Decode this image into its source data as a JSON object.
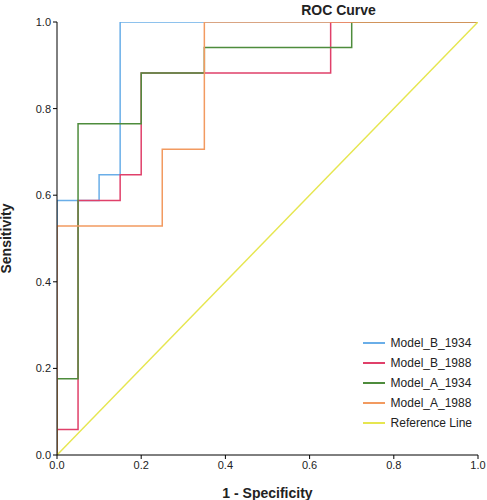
{
  "chart_data": {
    "type": "line",
    "title": "ROC Curve",
    "x_label": "1 - Specificity",
    "y_label": "Sensitivity",
    "xlim": [
      0,
      1
    ],
    "ylim": [
      0,
      1
    ],
    "xticks": [
      {
        "value": 0,
        "label": "0.0"
      },
      {
        "value": 0.2,
        "label": "0.2"
      },
      {
        "value": 0.4,
        "label": "0.4"
      },
      {
        "value": 0.6,
        "label": "0.6"
      },
      {
        "value": 0.8,
        "label": "0.8"
      },
      {
        "value": 1,
        "label": "1.0"
      }
    ],
    "yticks": [
      {
        "value": 0,
        "label": "0.0"
      },
      {
        "value": 0.2,
        "label": "0.2"
      },
      {
        "value": 0.4,
        "label": "0.4"
      },
      {
        "value": 0.6,
        "label": "0.6"
      },
      {
        "value": 0.8,
        "label": "0.8"
      },
      {
        "value": 1,
        "label": "1.0"
      }
    ],
    "grid": false,
    "legend": "lower right",
    "series": [
      {
        "name": "Model_B_1934",
        "color": "#6aaee8",
        "x": [
          0,
          0,
          0.1,
          0.1,
          0.15,
          0.15,
          1
        ],
        "values": [
          0,
          0.588,
          0.588,
          0.647,
          0.647,
          1,
          1
        ]
      },
      {
        "name": "Model_B_1988",
        "color": "#e0406a",
        "x": [
          0,
          0,
          0.05,
          0.05,
          0.15,
          0.15,
          0.2,
          0.2,
          0.65,
          0.65,
          1
        ],
        "values": [
          0,
          0.059,
          0.059,
          0.588,
          0.588,
          0.647,
          0.647,
          0.882,
          0.882,
          1,
          1
        ]
      },
      {
        "name": "Model_A_1934",
        "color": "#4e8c3c",
        "x": [
          0,
          0,
          0.05,
          0.05,
          0.2,
          0.2,
          0.35,
          0.35,
          0.7,
          0.7,
          1
        ],
        "values": [
          0,
          0.176,
          0.176,
          0.765,
          0.765,
          0.882,
          0.882,
          0.941,
          0.941,
          1,
          1
        ]
      },
      {
        "name": "Model_A_1988",
        "color": "#f29a60",
        "x": [
          0,
          0,
          0.25,
          0.25,
          0.35,
          0.35,
          1
        ],
        "values": [
          0,
          0.529,
          0.529,
          0.706,
          0.706,
          1,
          1
        ]
      },
      {
        "name": "Reference Line",
        "color": "#e6e650",
        "x": [
          0,
          1
        ],
        "values": [
          0,
          1
        ]
      }
    ]
  }
}
